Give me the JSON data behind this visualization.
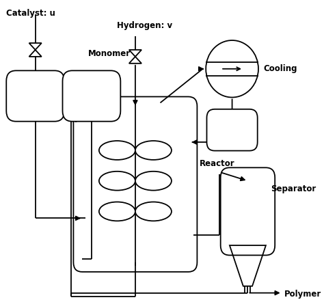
{
  "bg_color": "#ffffff",
  "line_color": "#000000",
  "labels": {
    "catalyst": "Catalyst: u",
    "hydrogen": "Hydrogen: v",
    "monomer": "Monomer",
    "cooling": "Cooling",
    "reactor": "Reactor",
    "separator": "Separator",
    "polymer": "Polymer"
  }
}
